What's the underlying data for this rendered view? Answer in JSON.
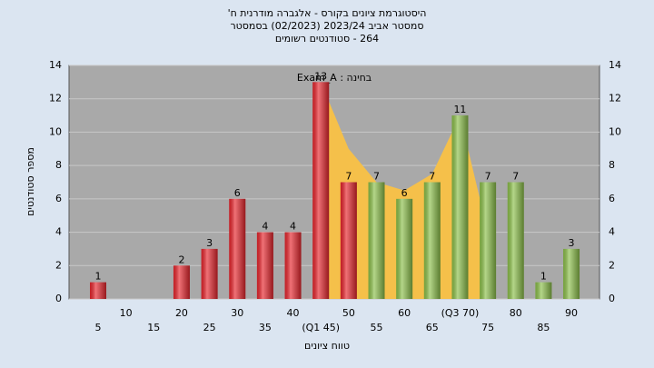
{
  "chart_data": {
    "type": "bar",
    "title_lines": [
      "היסטוגרמת ציונים בקורס - אלגברה מודרנית ח'",
      "סמסטר אביב 2023/24 (02/2023) בסמסטר",
      "264 - סטודנטים רשומים"
    ],
    "annotation": "בחינה : Exam_A",
    "x_label": "טווח ציונים",
    "y_label": "מספר סטודנטים",
    "categories": [
      "5",
      "10",
      "15",
      "20",
      "25",
      "30",
      "35",
      "40",
      "(Q1 45)",
      "50",
      "55",
      "60",
      "65",
      "(Q3 70)",
      "75",
      "80",
      "85",
      "90"
    ],
    "values": [
      1,
      0,
      0,
      2,
      3,
      6,
      4,
      4,
      13,
      7,
      7,
      6,
      7,
      11,
      7,
      7,
      1,
      3
    ],
    "colors": [
      "#e8262d",
      "#e8262d",
      "#e8262d",
      "#e8262d",
      "#e8262d",
      "#e8262d",
      "#e8262d",
      "#e8262d",
      "#e8262d",
      "#e8262d",
      "#8cc04a",
      "#8cc04a",
      "#8cc04a",
      "#8cc04a",
      "#8cc04a",
      "#8cc04a",
      "#8cc04a",
      "#8cc04a"
    ],
    "area": {
      "color": "#f5c04a",
      "x": [
        45,
        50,
        55,
        60,
        65,
        70,
        75
      ],
      "values": [
        13,
        9,
        7,
        6.5,
        7.5,
        11,
        4
      ]
    },
    "ylim": [
      0,
      14
    ],
    "yticks": [
      0,
      2,
      4,
      6,
      8,
      10,
      12,
      14
    ],
    "grid": true
  }
}
